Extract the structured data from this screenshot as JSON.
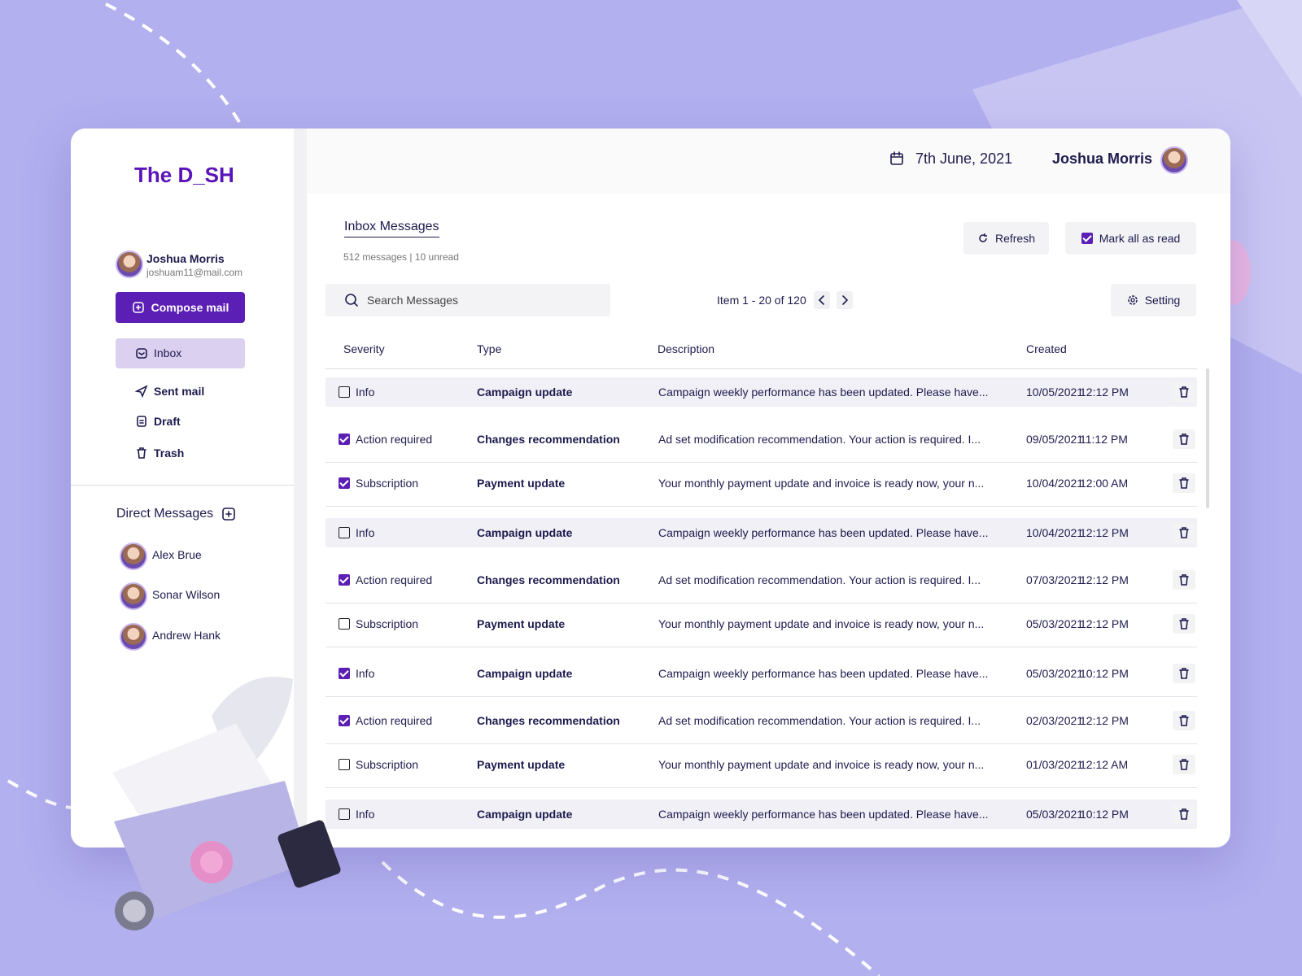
{
  "sidebar": {
    "logo": "The D_SH",
    "user": {
      "name": "Joshua Morris",
      "email": "joshuam11@mail.com"
    },
    "compose": "Compose mail",
    "nav": [
      "Inbox",
      "Sent mail",
      "Draft",
      "Trash"
    ],
    "dm_title": "Direct Messages",
    "contacts": [
      "Alex Brue",
      "Sonar Wilson",
      "Andrew Hank"
    ]
  },
  "header": {
    "date": "7th June, 2021",
    "user": "Joshua Morris"
  },
  "inbox": {
    "title": "Inbox Messages",
    "summary": "512 messages | 10 unread",
    "refresh": "Refresh",
    "mark_all": "Mark all as read",
    "search_placeholder": "Search Messages",
    "pagination": "Item 1 - 20 of 120",
    "setting": "Setting"
  },
  "table": {
    "columns": [
      "Severity",
      "Type",
      "Description",
      "Created"
    ],
    "rows": [
      {
        "checked": false,
        "highlight": true,
        "severity": "Info",
        "type": "Campaign update",
        "description": "Campaign weekly performance has been updated. Please have...",
        "date": "10/05/2021",
        "time": "12:12 PM"
      },
      {
        "checked": true,
        "highlight": false,
        "severity": "Action required",
        "type": "Changes recommendation",
        "description": "Ad set modification recommendation. Your action is required. I...",
        "date": "09/05/2021",
        "time": "11:12 PM"
      },
      {
        "checked": true,
        "highlight": false,
        "severity": "Subscription",
        "type": "Payment update",
        "description": "Your monthly payment update and invoice is ready now, your n...",
        "date": "10/04/2021",
        "time": "12:00 AM"
      },
      {
        "checked": false,
        "highlight": true,
        "severity": "Info",
        "type": "Campaign update",
        "description": "Campaign weekly performance has been updated. Please have...",
        "date": "10/04/2021",
        "time": "12:12 PM"
      },
      {
        "checked": true,
        "highlight": false,
        "severity": "Action required",
        "type": "Changes recommendation",
        "description": "Ad set modification recommendation. Your action is required. I...",
        "date": "07/03/2021",
        "time": "12:12 PM"
      },
      {
        "checked": false,
        "highlight": false,
        "severity": "Subscription",
        "type": "Payment update",
        "description": "Your monthly payment update and invoice is ready now, your n...",
        "date": "05/03/2021",
        "time": "12:12 PM"
      },
      {
        "checked": true,
        "highlight": false,
        "severity": "Info",
        "type": "Campaign update",
        "description": "Campaign weekly performance has been updated. Please have...",
        "date": "05/03/2021",
        "time": "10:12 PM"
      },
      {
        "checked": true,
        "highlight": false,
        "severity": "Action required",
        "type": "Changes recommendation",
        "description": "Ad set modification recommendation. Your action is required. I...",
        "date": "02/03/2021",
        "time": "12:12 PM"
      },
      {
        "checked": false,
        "highlight": false,
        "severity": "Subscription",
        "type": "Payment update",
        "description": "Your monthly payment update and invoice is ready now, your n...",
        "date": "01/03/2021",
        "time": "12:12 AM"
      },
      {
        "checked": false,
        "highlight": true,
        "severity": "Info",
        "type": "Campaign update",
        "description": "Campaign weekly performance has been updated. Please have...",
        "date": "05/03/2021",
        "time": "10:12 PM"
      }
    ]
  }
}
